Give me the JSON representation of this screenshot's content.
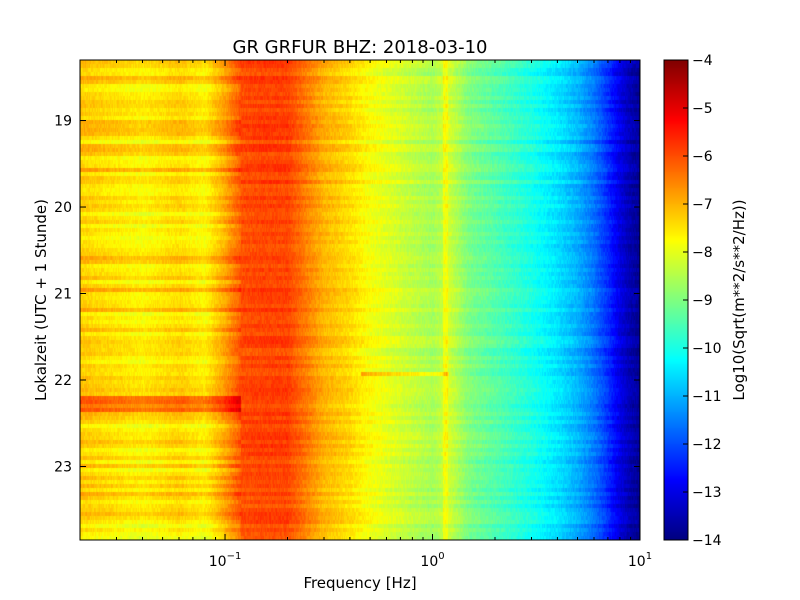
{
  "chart_data": {
    "type": "heatmap",
    "title": "GR GRFUR BHZ: 2018-03-10",
    "xlabel": "Frequency [Hz]",
    "ylabel": "Lokalzeit (UTC + 1 Stunde)",
    "x_scale": "log",
    "xlim": [
      0.02,
      10
    ],
    "x_ticks": [
      {
        "value": 0.1,
        "base": "10",
        "exp": "-1"
      },
      {
        "value": 1,
        "base": "10",
        "exp": "0"
      },
      {
        "value": 10,
        "base": "10",
        "exp": "1"
      }
    ],
    "ylim": [
      18.3,
      23.85
    ],
    "y_inverted": true,
    "y_ticks": [
      {
        "value": 19,
        "label": "19"
      },
      {
        "value": 20,
        "label": "20"
      },
      {
        "value": 21,
        "label": "21"
      },
      {
        "value": 22,
        "label": "22"
      },
      {
        "value": 23,
        "label": "23"
      }
    ],
    "colorbar": {
      "label": "Log10(Sqrt(m**2/s**2/Hz))",
      "colormap": "jet",
      "vmin": -14,
      "vmax": -4,
      "ticks": [
        {
          "value": -4,
          "label": "−4"
        },
        {
          "value": -5,
          "label": "−5"
        },
        {
          "value": -6,
          "label": "−6"
        },
        {
          "value": -7,
          "label": "−7"
        },
        {
          "value": -8,
          "label": "−8"
        },
        {
          "value": -9,
          "label": "−9"
        },
        {
          "value": -10,
          "label": "−10"
        },
        {
          "value": -11,
          "label": "−11"
        },
        {
          "value": -12,
          "label": "−12"
        },
        {
          "value": -13,
          "label": "−13"
        },
        {
          "value": -14,
          "label": "−14"
        }
      ]
    },
    "spectrum_profile": {
      "frequency": [
        0.02,
        0.04,
        0.06,
        0.08,
        0.1,
        0.12,
        0.15,
        0.2,
        0.25,
        0.3,
        0.4,
        0.5,
        0.7,
        1.0,
        1.2,
        1.5,
        2,
        3,
        4,
        5,
        6,
        7,
        8,
        9,
        10
      ],
      "value": [
        -7.2,
        -7.6,
        -7.3,
        -7.6,
        -6.8,
        -6.0,
        -5.9,
        -5.9,
        -6.5,
        -7.0,
        -7.4,
        -7.8,
        -8.2,
        -8.6,
        -8.2,
        -9.0,
        -9.4,
        -10.0,
        -10.5,
        -11.0,
        -11.6,
        -12.3,
        -13.0,
        -13.5,
        -13.8
      ]
    },
    "features": [
      {
        "name": "broadband-event",
        "time_start": 22.2,
        "time_end": 22.35,
        "freq_max": 0.12,
        "value_offset": 1.3
      },
      {
        "name": "line-feature",
        "time": 21.93,
        "freq_min": 0.45,
        "freq_max": 1.2,
        "value_offset": 0.9
      },
      {
        "name": "tone-1hz",
        "frequency": 1.15,
        "value_offset": 0.6
      }
    ]
  }
}
